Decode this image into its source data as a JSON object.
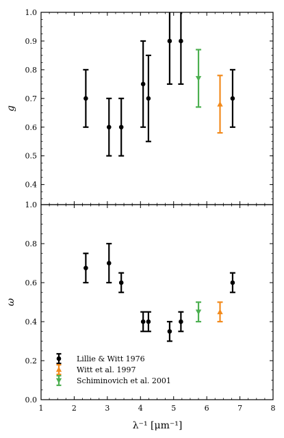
{
  "chart_data": [
    {
      "type": "scatter",
      "panel": "top",
      "xlabel": "",
      "ylabel": "g",
      "xlim": [
        1,
        8
      ],
      "ylim": [
        0.33,
        1.0
      ],
      "yticks": [
        0.4,
        0.5,
        0.6,
        0.7,
        0.8,
        0.9,
        1.0
      ],
      "ytick_labels": [
        "0.4",
        "0.5",
        "0.6",
        "0.7",
        "0.8",
        "0.9",
        "1.0"
      ],
      "grid": false,
      "series": [
        {
          "name": "Lillie & Witt 1976",
          "color": "#000000",
          "marker": "circle",
          "points": [
            {
              "x": 2.35,
              "y": 0.7,
              "ylo": 0.6,
              "yhi": 0.8
            },
            {
              "x": 3.05,
              "y": 0.6,
              "ylo": 0.5,
              "yhi": 0.7
            },
            {
              "x": 3.42,
              "y": 0.6,
              "ylo": 0.5,
              "yhi": 0.7
            },
            {
              "x": 4.08,
              "y": 0.75,
              "ylo": 0.6,
              "yhi": 0.9
            },
            {
              "x": 4.24,
              "y": 0.7,
              "ylo": 0.55,
              "yhi": 0.85
            },
            {
              "x": 4.88,
              "y": 0.9,
              "ylo": 0.75,
              "yhi": 1.05
            },
            {
              "x": 5.22,
              "y": 0.9,
              "ylo": 0.75,
              "yhi": 1.05
            },
            {
              "x": 6.78,
              "y": 0.7,
              "ylo": 0.6,
              "yhi": 0.8
            }
          ]
        },
        {
          "name": "Witt et al. 1997",
          "color": "#f28a1c",
          "marker": "triangle-up",
          "points": [
            {
              "x": 6.4,
              "y": 0.68,
              "ylo": 0.58,
              "yhi": 0.78
            }
          ]
        },
        {
          "name": "Schiminovich et al. 2001",
          "color": "#4caf50",
          "marker": "triangle-down",
          "points": [
            {
              "x": 5.75,
              "y": 0.77,
              "ylo": 0.67,
              "yhi": 0.87
            }
          ]
        }
      ]
    },
    {
      "type": "scatter",
      "panel": "bottom",
      "xlabel": "λ⁻¹ [μm⁻¹]",
      "ylabel": "ω",
      "xlim": [
        1,
        8
      ],
      "ylim": [
        0.0,
        1.0
      ],
      "xticks": [
        1,
        2,
        3,
        4,
        5,
        6,
        7,
        8
      ],
      "xtick_labels": [
        "1",
        "2",
        "3",
        "4",
        "5",
        "6",
        "7",
        "8"
      ],
      "yticks": [
        0.0,
        0.2,
        0.4,
        0.6,
        0.8,
        1.0
      ],
      "ytick_labels": [
        "0.0",
        "0.2",
        "0.4",
        "0.6",
        "0.8",
        "1.0"
      ],
      "grid": false,
      "legend_position": "bottom-left",
      "series": [
        {
          "name": "Lillie & Witt 1976",
          "color": "#000000",
          "marker": "circle",
          "points": [
            {
              "x": 2.35,
              "y": 0.675,
              "ylo": 0.6,
              "yhi": 0.75
            },
            {
              "x": 3.05,
              "y": 0.7,
              "ylo": 0.6,
              "yhi": 0.8
            },
            {
              "x": 3.42,
              "y": 0.6,
              "ylo": 0.55,
              "yhi": 0.65
            },
            {
              "x": 4.08,
              "y": 0.4,
              "ylo": 0.35,
              "yhi": 0.45
            },
            {
              "x": 4.24,
              "y": 0.4,
              "ylo": 0.35,
              "yhi": 0.45
            },
            {
              "x": 4.88,
              "y": 0.35,
              "ylo": 0.3,
              "yhi": 0.4
            },
            {
              "x": 5.22,
              "y": 0.4,
              "ylo": 0.35,
              "yhi": 0.45
            },
            {
              "x": 6.78,
              "y": 0.6,
              "ylo": 0.55,
              "yhi": 0.65
            }
          ]
        },
        {
          "name": "Witt et al. 1997",
          "color": "#f28a1c",
          "marker": "triangle-up",
          "points": [
            {
              "x": 6.4,
              "y": 0.45,
              "ylo": 0.4,
              "yhi": 0.5
            }
          ]
        },
        {
          "name": "Schiminovich et al. 2001",
          "color": "#4caf50",
          "marker": "triangle-down",
          "points": [
            {
              "x": 5.75,
              "y": 0.45,
              "ylo": 0.4,
              "yhi": 0.5
            }
          ]
        }
      ]
    }
  ]
}
